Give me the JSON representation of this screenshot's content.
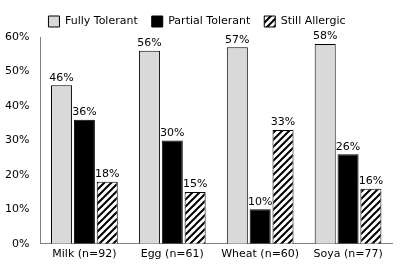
{
  "chart_data": {
    "type": "bar",
    "categories": [
      "Milk (n=92)",
      "Egg (n=61)",
      "Wheat (n=60)",
      "Soya (n=77)"
    ],
    "series": [
      {
        "name": "Fully Tolerant",
        "color": "#d9d9d9",
        "values": [
          46,
          56,
          57,
          58
        ],
        "value_labels": [
          "46%",
          "56%",
          "57%",
          "58%"
        ]
      },
      {
        "name": "Partial Tolerant",
        "color": "#000000",
        "values": [
          36,
          30,
          10,
          26
        ],
        "value_labels": [
          "36%",
          "30%",
          "10%",
          "26%"
        ]
      },
      {
        "name": "Still Allergic",
        "color": "#ffffff",
        "values": [
          18,
          15,
          33,
          16
        ],
        "value_labels": [
          "18%",
          "15%",
          "33%",
          "16%"
        ]
      }
    ],
    "ylim": [
      0,
      60
    ],
    "yticks": [
      {
        "value": 0,
        "label": "0%"
      },
      {
        "value": 10,
        "label": "10%"
      },
      {
        "value": 20,
        "label": "20%"
      },
      {
        "value": 30,
        "label": "30%"
      },
      {
        "value": 40,
        "label": "40%"
      },
      {
        "value": 50,
        "label": "50%"
      },
      {
        "value": 60,
        "label": "60%"
      }
    ],
    "grid": false,
    "legend": "top",
    "data_labels": true
  }
}
